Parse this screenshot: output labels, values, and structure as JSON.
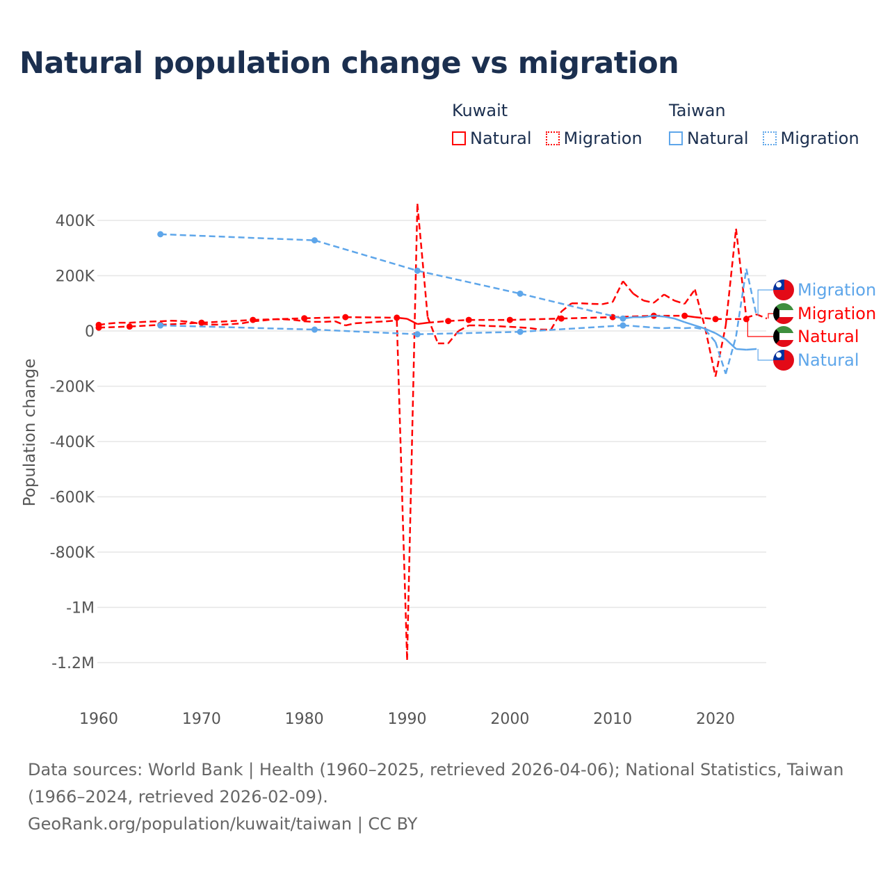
{
  "title": "Natural population change vs migration",
  "legend": [
    {
      "country": "Kuwait",
      "color": "#ff0000",
      "items": [
        "Natural",
        "Migration"
      ]
    },
    {
      "country": "Taiwan",
      "color": "#5ea6ea",
      "items": [
        "Natural",
        "Migration"
      ]
    }
  ],
  "footer": {
    "sources": "Data sources: World Bank | Health (1960–2025, retrieved 2026-04-06); National Statistics, Taiwan (1966–2024, retrieved 2026-02-09).",
    "credit": "GeoRank.org/population/kuwait/taiwan | CC BY"
  },
  "chart_data": {
    "type": "line",
    "title": "Natural population change vs migration",
    "ylabel": "Population change",
    "xlabel": "",
    "xlim": [
      1960,
      2025
    ],
    "ylim": [
      -1200000,
      400000
    ],
    "x_ticks": [
      1960,
      1970,
      1980,
      1990,
      2000,
      2010,
      2020
    ],
    "y_ticks": [
      {
        "v": 400000,
        "label": "400K"
      },
      {
        "v": 200000,
        "label": "200K"
      },
      {
        "v": 0,
        "label": "0"
      },
      {
        "v": -200000,
        "label": "-200K"
      },
      {
        "v": -400000,
        "label": "-400K"
      },
      {
        "v": -600000,
        "label": "-600K"
      },
      {
        "v": -800000,
        "label": "-800K"
      },
      {
        "v": -1000000,
        "label": "-1M"
      },
      {
        "v": -1200000,
        "label": "-1.2M"
      }
    ],
    "grid": true,
    "legend_position": "top-right",
    "series": [
      {
        "name": "Kuwait Natural",
        "end_label": "Natural",
        "color": "#ff0000",
        "dash": false,
        "flag": "kuwait",
        "x": [
          1960,
          1963,
          1966,
          1970,
          1975,
          1980,
          1984,
          1989,
          1990,
          1991,
          1992,
          1994,
          1996,
          2000,
          2005,
          2010,
          2014,
          2017,
          2018,
          2020,
          2023
        ],
        "y": [
          12000,
          16000,
          22000,
          30000,
          40000,
          46000,
          50000,
          48000,
          44000,
          25000,
          30000,
          36000,
          40000,
          40000,
          45000,
          50000,
          55000,
          55000,
          50000,
          43000,
          43000
        ]
      },
      {
        "name": "Kuwait Migration",
        "end_label": "Migration",
        "color": "#ff0000",
        "dash": true,
        "flag": "kuwait",
        "x": [
          1960,
          1961,
          1962,
          1963,
          1964,
          1965,
          1966,
          1967,
          1968,
          1969,
          1970,
          1971,
          1972,
          1973,
          1974,
          1975,
          1976,
          1977,
          1978,
          1979,
          1980,
          1981,
          1982,
          1983,
          1984,
          1985,
          1986,
          1987,
          1988,
          1989,
          1990,
          1991,
          1992,
          1993,
          1994,
          1995,
          1996,
          1997,
          1998,
          1999,
          2000,
          2001,
          2002,
          2003,
          2004,
          2005,
          2006,
          2007,
          2008,
          2009,
          2010,
          2011,
          2012,
          2013,
          2014,
          2015,
          2016,
          2017,
          2018,
          2019,
          2020,
          2021,
          2022,
          2023,
          2024,
          2025
        ],
        "y": [
          22000,
          27000,
          30000,
          30000,
          32000,
          34000,
          35000,
          37000,
          36000,
          32000,
          25000,
          23000,
          23000,
          25000,
          28000,
          35000,
          38000,
          42000,
          42000,
          40000,
          35000,
          33000,
          33000,
          35000,
          20000,
          28000,
          30000,
          33000,
          35000,
          38000,
          -1190000,
          460000,
          50000,
          -45000,
          -45000,
          0,
          20000,
          20000,
          18000,
          17000,
          15000,
          13000,
          10000,
          5000,
          5000,
          70000,
          100000,
          100000,
          98000,
          97000,
          105000,
          180000,
          135000,
          110000,
          102000,
          132000,
          110000,
          98000,
          150000,
          10000,
          -165000,
          20000,
          370000,
          48000,
          60000,
          45000
        ]
      },
      {
        "name": "Taiwan Natural",
        "end_label": "Natural",
        "color": "#5ea6ea",
        "dash": false,
        "flag": "taiwan",
        "x": [
          1966,
          1981,
          1991,
          2001,
          2011,
          2012,
          2013,
          2014,
          2015,
          2016,
          2017,
          2018,
          2019,
          2020,
          2021,
          2022,
          2023,
          2024
        ],
        "y": [
          350000,
          328000,
          218000,
          135000,
          45000,
          50000,
          50000,
          55000,
          52000,
          45000,
          32000,
          20000,
          8000,
          -8000,
          -30000,
          -65000,
          -68000,
          -65000
        ]
      },
      {
        "name": "Taiwan Migration",
        "end_label": "Migration",
        "color": "#5ea6ea",
        "dash": true,
        "flag": "taiwan",
        "x": [
          1966,
          1981,
          1991,
          2001,
          2011,
          2012,
          2013,
          2014,
          2015,
          2016,
          2017,
          2018,
          2019,
          2020,
          2021,
          2022,
          2023,
          2024
        ],
        "y": [
          20000,
          5000,
          -12000,
          -3000,
          20000,
          18000,
          15000,
          12000,
          10000,
          12000,
          10000,
          12000,
          5000,
          -40000,
          -155000,
          -20000,
          225000,
          55000
        ]
      }
    ],
    "end_label_order": [
      "Taiwan Migration",
      "Kuwait Migration",
      "Kuwait Natural",
      "Taiwan Natural"
    ]
  }
}
